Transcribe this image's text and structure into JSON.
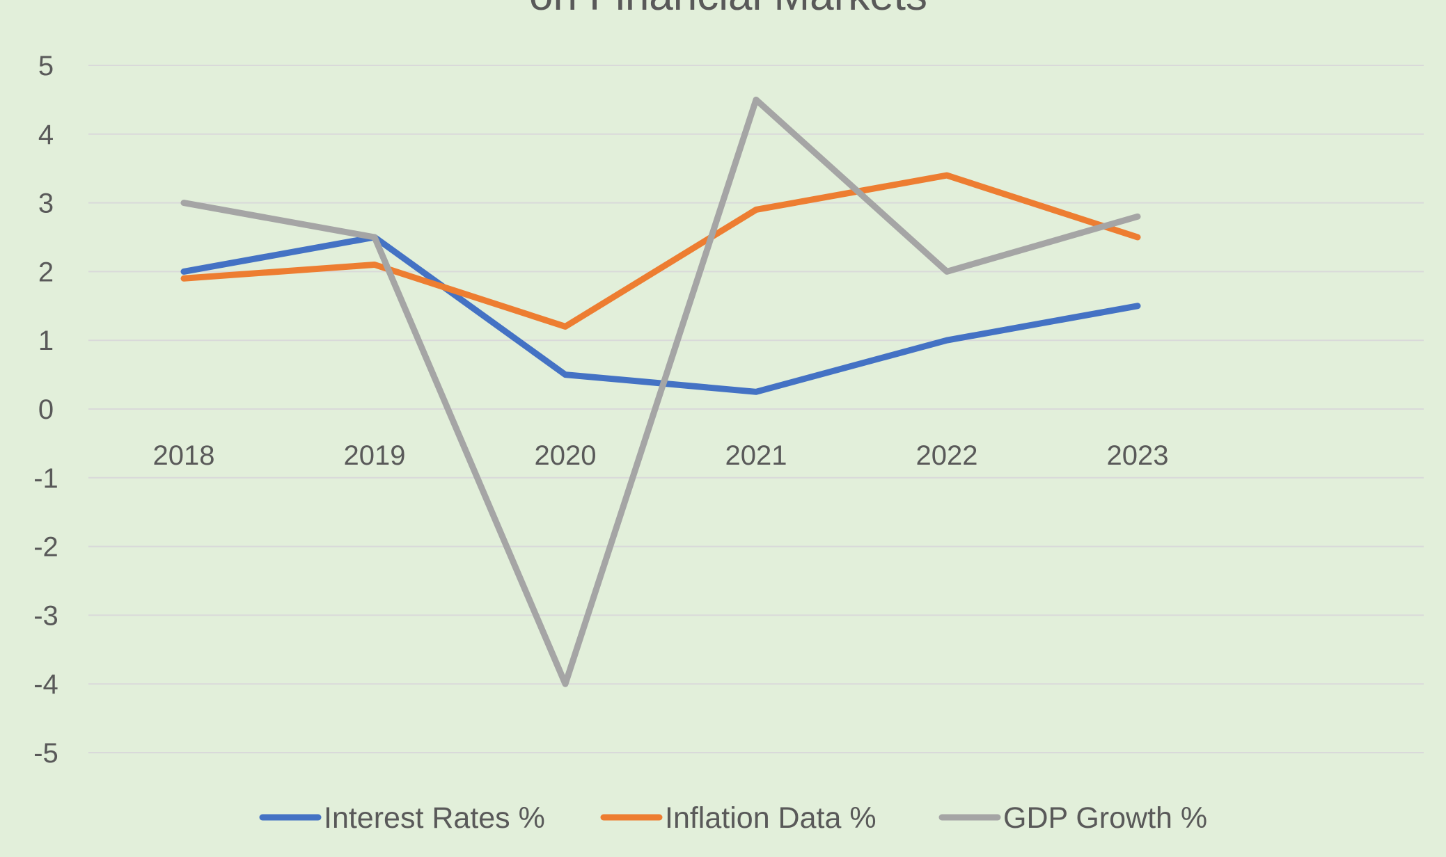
{
  "chart_data": {
    "type": "line",
    "title": "on Financial Markets",
    "xlabel": "",
    "ylabel": "",
    "categories": [
      "2018",
      "2019",
      "2020",
      "2021",
      "2022",
      "2023"
    ],
    "ylim": [
      -5,
      5
    ],
    "yticks": [
      "5",
      "4",
      "3",
      "2",
      "1",
      "0",
      "-1",
      "-2",
      "-3",
      "-4",
      "-5"
    ],
    "grid": true,
    "legend_position": "bottom",
    "series": [
      {
        "name": "Interest Rates %",
        "color": "#4472c4",
        "values": [
          2,
          2.5,
          0.5,
          0.25,
          1,
          1.5
        ]
      },
      {
        "name": "Inflation Data %",
        "color": "#ed7d31",
        "values": [
          1.9,
          2.1,
          1.2,
          2.9,
          3.4,
          2.5
        ]
      },
      {
        "name": "GDP Growth %",
        "color": "#a5a5a5",
        "values": [
          3,
          2.5,
          -4,
          4.5,
          2,
          2.8
        ]
      }
    ]
  },
  "colors": {
    "background": "#e2efda",
    "gridline": "#d9d9d9",
    "text": "#595959"
  }
}
